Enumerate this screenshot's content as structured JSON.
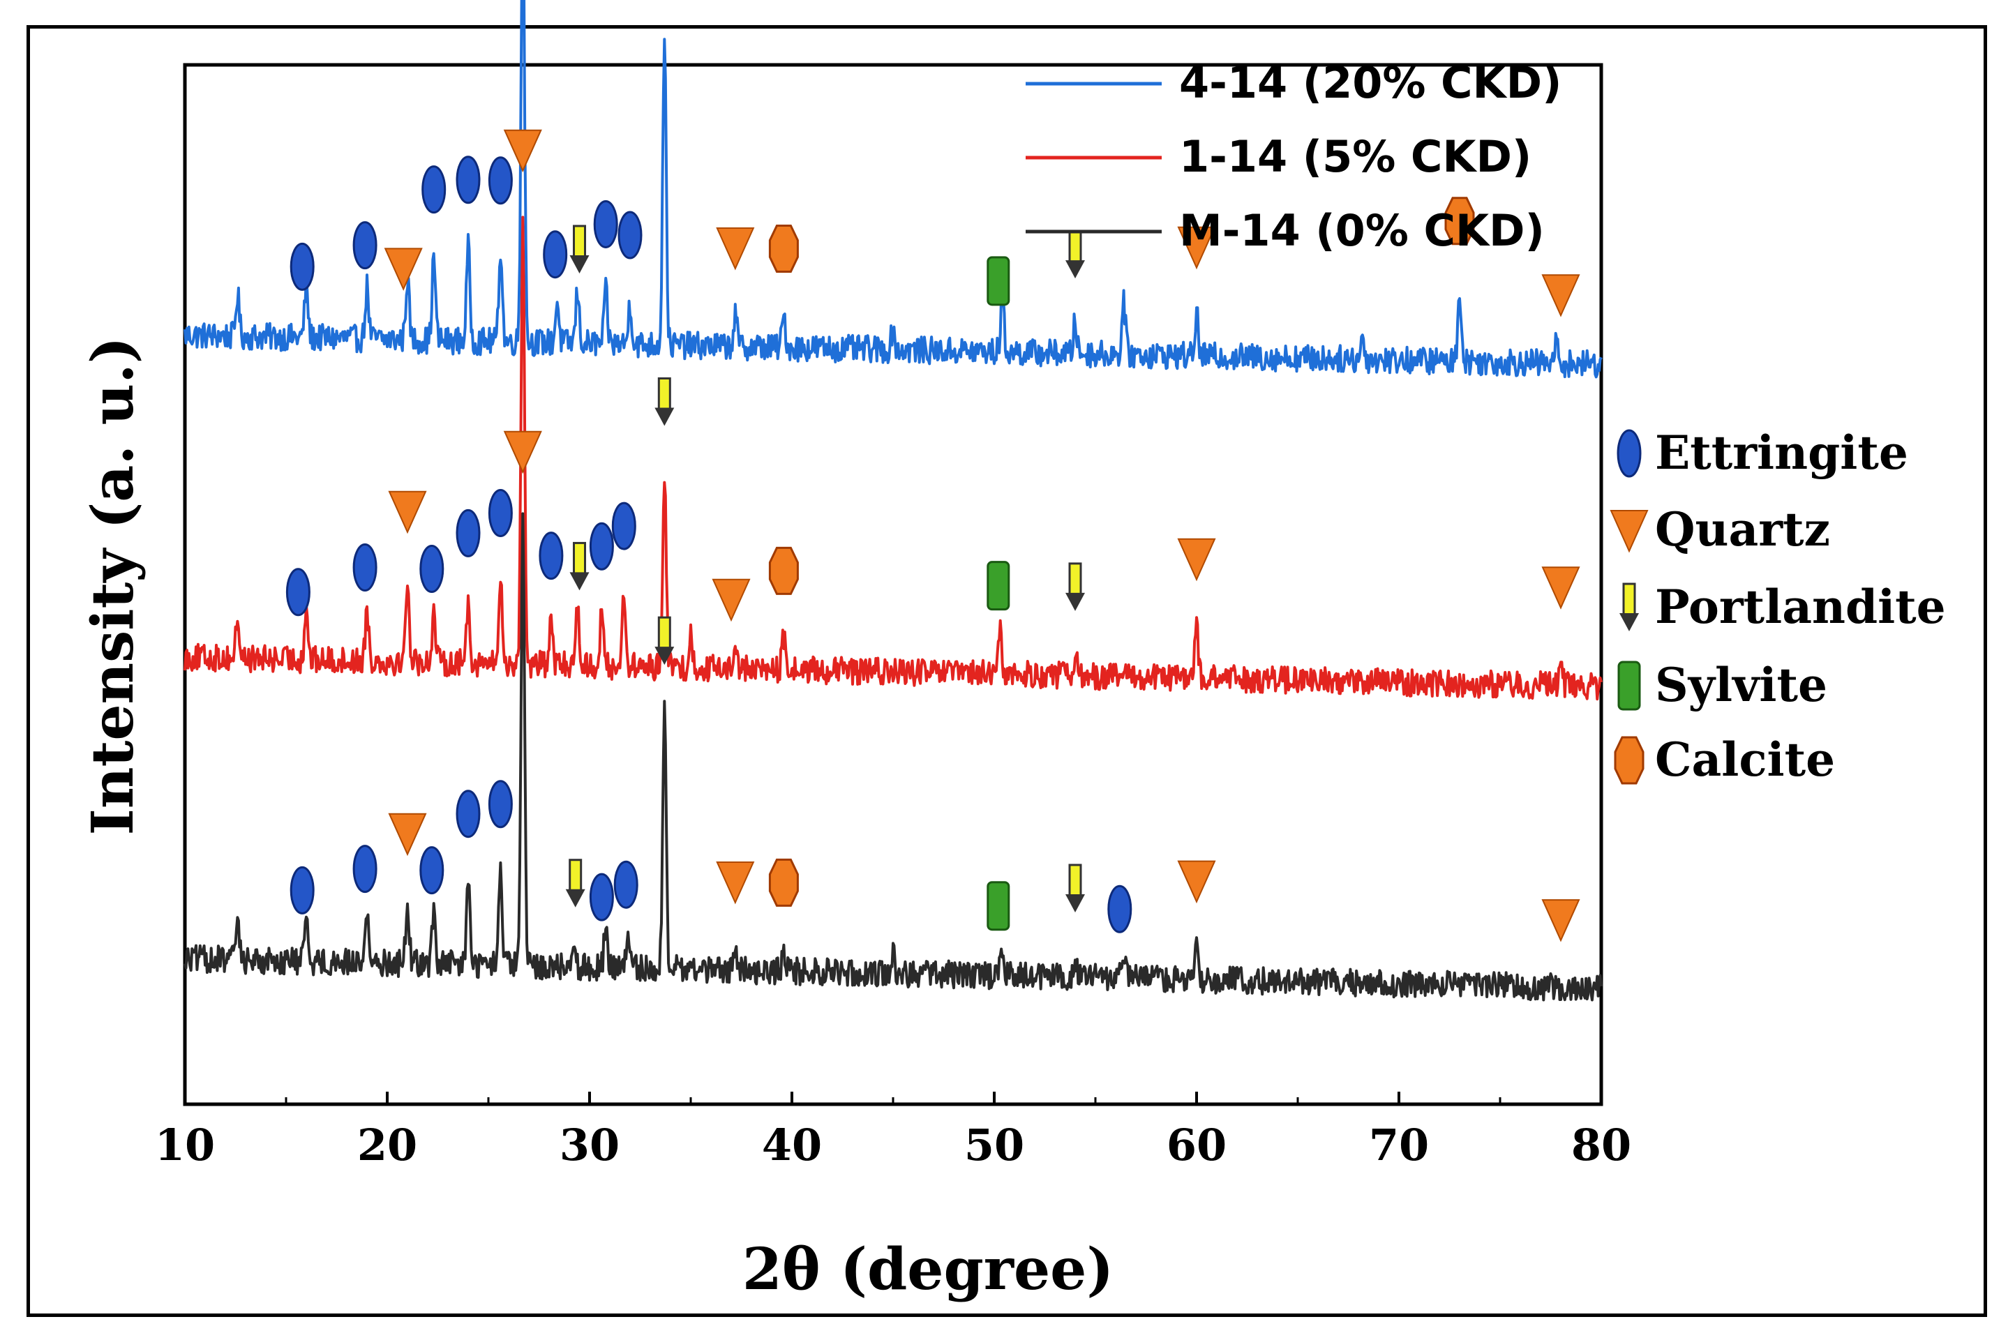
{
  "chart_data": {
    "type": "line",
    "xlabel": "2θ (degree)",
    "ylabel": "Intensity (a. u.)",
    "xlim": [
      10,
      80
    ],
    "ylim": [
      0,
      100
    ],
    "xticks": [
      10,
      20,
      30,
      40,
      50,
      60,
      70,
      80
    ],
    "series": [
      {
        "name": "4-14 (20% CKD)",
        "color": "#1f6fd8",
        "offset": 70,
        "peaks": [
          [
            12.6,
            4
          ],
          [
            16,
            5
          ],
          [
            19,
            5
          ],
          [
            21,
            6
          ],
          [
            22.3,
            8
          ],
          [
            24,
            9
          ],
          [
            25.6,
            9
          ],
          [
            26.7,
            43
          ],
          [
            28.4,
            4
          ],
          [
            29.4,
            5
          ],
          [
            30.8,
            5
          ],
          [
            32,
            4
          ],
          [
            33.7,
            30
          ],
          [
            37.2,
            3
          ],
          [
            39.6,
            3
          ],
          [
            45,
            2
          ],
          [
            50.4,
            5
          ],
          [
            54,
            3
          ],
          [
            56.4,
            5
          ],
          [
            60,
            4
          ],
          [
            68.2,
            2
          ],
          [
            73,
            7
          ],
          [
            77.8,
            2
          ]
        ],
        "markers": [
          {
            "phase": "Ettringite",
            "x": [
              15.8,
              18.9,
              22.3,
              24,
              25.6,
              28.3,
              30.8,
              32
            ]
          },
          {
            "phase": "Quartz",
            "x": [
              20.8,
              26.7,
              37.2,
              60,
              78
            ]
          },
          {
            "phase": "Portlandite",
            "x": [
              29.5,
              33.7,
              54
            ]
          },
          {
            "phase": "Sylvite",
            "x": [
              50.2
            ]
          },
          {
            "phase": "Calcite",
            "x": [
              39.6,
              73
            ]
          }
        ]
      },
      {
        "name": "1-14 (5% CKD)",
        "color": "#e3241f",
        "offset": 39,
        "peaks": [
          [
            12.6,
            4
          ],
          [
            16,
            5
          ],
          [
            19,
            5
          ],
          [
            21,
            8
          ],
          [
            22.3,
            5
          ],
          [
            24,
            6
          ],
          [
            25.6,
            8
          ],
          [
            26.7,
            43
          ],
          [
            28.1,
            4
          ],
          [
            29.4,
            6
          ],
          [
            30.6,
            5
          ],
          [
            31.7,
            7
          ],
          [
            33.7,
            19
          ],
          [
            35,
            3
          ],
          [
            37.2,
            3
          ],
          [
            39.6,
            3
          ],
          [
            50.3,
            4
          ],
          [
            54,
            2
          ],
          [
            60,
            5
          ],
          [
            78,
            3
          ]
        ],
        "markers": [
          {
            "phase": "Ettringite",
            "x": [
              15.6,
              18.9,
              22.2,
              24,
              25.6,
              28.1,
              30.6,
              31.7
            ]
          },
          {
            "phase": "Quartz",
            "x": [
              21,
              26.7,
              37,
              60,
              78
            ]
          },
          {
            "phase": "Portlandite",
            "x": [
              29.5,
              33.7,
              54
            ]
          },
          {
            "phase": "Sylvite",
            "x": [
              50.2
            ]
          },
          {
            "phase": "Calcite",
            "x": [
              39.6
            ]
          }
        ]
      },
      {
        "name": "M-14 (0% CKD)",
        "color": "#2a2a2a",
        "offset": 10,
        "peaks": [
          [
            12.6,
            4
          ],
          [
            16,
            5
          ],
          [
            19,
            5
          ],
          [
            21,
            6
          ],
          [
            22.3,
            5
          ],
          [
            24,
            8
          ],
          [
            25.6,
            9
          ],
          [
            26.7,
            43
          ],
          [
            29.2,
            3
          ],
          [
            30.8,
            4
          ],
          [
            31.9,
            3
          ],
          [
            33.7,
            25
          ],
          [
            37.2,
            2
          ],
          [
            39.6,
            2
          ],
          [
            45,
            2
          ],
          [
            50.4,
            3
          ],
          [
            54,
            2
          ],
          [
            56.4,
            2
          ],
          [
            60,
            3
          ]
        ],
        "markers": [
          {
            "phase": "Ettringite",
            "x": [
              15.8,
              18.9,
              22.2,
              24,
              25.6,
              30.6,
              31.8,
              56.2
            ]
          },
          {
            "phase": "Quartz",
            "x": [
              21,
              26.7,
              37.2,
              60,
              78
            ]
          },
          {
            "phase": "Portlandite",
            "x": [
              29.3,
              33.7,
              54
            ]
          },
          {
            "phase": "Sylvite",
            "x": [
              50.2
            ]
          },
          {
            "phase": "Calcite",
            "x": [
              39.6
            ]
          }
        ]
      }
    ],
    "legend": {
      "position": "top-right",
      "entries": [
        "4-14 (20% CKD)",
        "1-14 (5% CKD)",
        "M-14 (0% CKD)"
      ]
    },
    "phases": [
      {
        "name": "Ettringite",
        "symbol": "ellipse",
        "color": "#2456c8"
      },
      {
        "name": "Quartz",
        "symbol": "triangle-down",
        "color": "#f07a1e"
      },
      {
        "name": "Portlandite",
        "symbol": "arrow-down",
        "color": "#f2f229"
      },
      {
        "name": "Sylvite",
        "symbol": "rounded-rect",
        "color": "#3aa02a"
      },
      {
        "name": "Calcite",
        "symbol": "hexagon",
        "color": "#f07a1e"
      }
    ],
    "phase_legend_position": "right"
  }
}
